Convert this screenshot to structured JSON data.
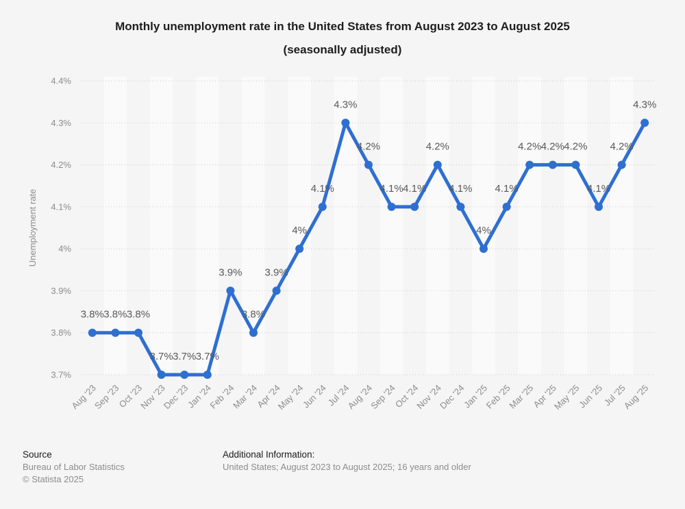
{
  "header": {
    "title_line1": "Monthly unemployment rate in the United States from August 2023 to August 2025",
    "title_line2": "(seasonally adjusted)"
  },
  "footer": {
    "source_label": "Source",
    "source_name": "Bureau of Labor Statistics",
    "copyright": "© Statista 2025",
    "additional_label": "Additional Information:",
    "additional_text": "United States; August 2023 to August 2025; 16 years and older"
  },
  "chart_data": {
    "type": "line",
    "title": "Monthly unemployment rate in the United States from August 2023 to August 2025 (seasonally adjusted)",
    "xlabel": "",
    "ylabel": "Unemployment rate",
    "ylim": [
      3.7,
      4.4
    ],
    "grid": "horizontal-dotted",
    "legend": "none",
    "categories": [
      "Aug '23",
      "Sep '23",
      "Oct '23",
      "Nov '23",
      "Dec '23",
      "Jan '24",
      "Feb '24",
      "Mar '24",
      "Apr '24",
      "May '24",
      "Jun '24",
      "Jul '24",
      "Aug '24",
      "Sep '24",
      "Oct '24",
      "Nov '24",
      "Dec '24",
      "Jan '25",
      "Feb '25",
      "Mar '25",
      "Apr '25",
      "May '25",
      "Jun '25",
      "Jul '25",
      "Aug '25"
    ],
    "values": [
      3.8,
      3.8,
      3.8,
      3.7,
      3.7,
      3.7,
      3.9,
      3.8,
      3.9,
      4,
      4.1,
      4.3,
      4.2,
      4.1,
      4.1,
      4.2,
      4.1,
      4,
      4.1,
      4.2,
      4.2,
      4.2,
      4.1,
      4.2,
      4.3
    ],
    "point_labels": [
      "3.8%",
      "3.8%",
      "3.8%",
      "3.7%",
      "3.7%",
      "3.7%",
      "3.9%",
      "3.8%",
      "3.9%",
      "4%",
      "4.1%",
      "4.3%",
      "4.2%",
      "4.1%",
      "4.1%",
      "4.2%",
      "4.1%",
      "4%",
      "4.1%",
      "4.2%",
      "4.2%",
      "4.2%",
      "4.1%",
      "4.2%",
      "4.3%"
    ],
    "yticks": [
      {
        "value": 4.4,
        "label": "4.4%"
      },
      {
        "value": 4.3,
        "label": "4.3%"
      },
      {
        "value": 4.2,
        "label": "4.2%"
      },
      {
        "value": 4.1,
        "label": "4.1%"
      },
      {
        "value": 4.0,
        "label": "4%"
      },
      {
        "value": 3.9,
        "label": "3.9%"
      },
      {
        "value": 3.8,
        "label": "3.8%"
      },
      {
        "value": 3.7,
        "label": "3.7%"
      }
    ],
    "colors": {
      "line": "#2e6fd2",
      "band": "#fafafa",
      "background": "#f5f5f5",
      "grid": "#c9c9c9",
      "axis_text": "#8c8c8c",
      "label_text": "#58585a",
      "title_text": "#1d1d1d"
    }
  }
}
